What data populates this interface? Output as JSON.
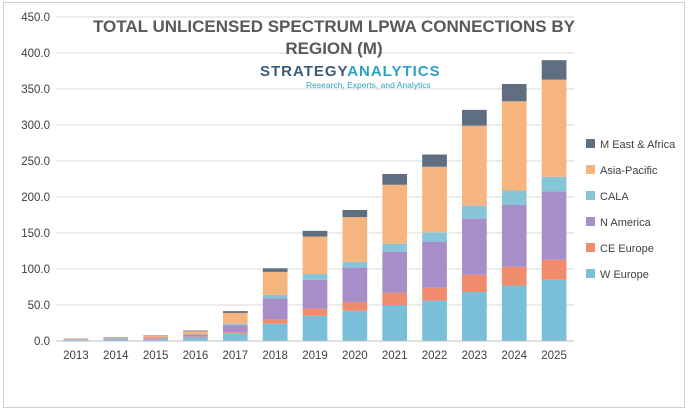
{
  "chart_data": {
    "type": "bar",
    "stacked": true,
    "title": "TOTAL UNLICENSED SPECTRUM LPWA CONNECTIONS BY REGION (M)",
    "title_lines": [
      "TOTAL UNLICENSED SPECTRUM LPWA CONNECTIONS BY",
      "REGION (M)"
    ],
    "watermark": {
      "name_a": "STRATEGY",
      "name_b": "ANALYTICS",
      "tagline": "Research, Experts, and Analytics"
    },
    "categories": [
      "2013",
      "2014",
      "2015",
      "2016",
      "2017",
      "2018",
      "2019",
      "2020",
      "2021",
      "2022",
      "2023",
      "2024",
      "2025"
    ],
    "ylim": [
      0,
      450
    ],
    "yticks": [
      "0.0",
      "50.0",
      "100.0",
      "150.0",
      "200.0",
      "250.0",
      "300.0",
      "350.0",
      "400.0",
      "450.0"
    ],
    "ytick_values": [
      0,
      50,
      100,
      150,
      200,
      250,
      300,
      350,
      400,
      450
    ],
    "grid": true,
    "legend_position": "right",
    "series": [
      {
        "name": "W Europe",
        "color": "#79bfd9",
        "values": [
          1.5,
          2.5,
          3,
          5,
          10,
          24,
          35,
          42,
          50,
          56,
          68,
          77,
          85
        ]
      },
      {
        "name": "CE Europe",
        "color": "#f08c6c",
        "values": [
          0.3,
          0.4,
          0.6,
          1,
          2,
          6,
          10,
          12,
          17,
          18,
          24,
          26,
          28
        ]
      },
      {
        "name": "N America",
        "color": "#a78ec9",
        "values": [
          0.7,
          1,
          1.5,
          3,
          10,
          29,
          40,
          48,
          57,
          64,
          78,
          86,
          95
        ]
      },
      {
        "name": "CALA",
        "color": "#86c4d8",
        "values": [
          0.2,
          0.3,
          0.4,
          0.5,
          2,
          5,
          8,
          8,
          11,
          13,
          18,
          20,
          20
        ]
      },
      {
        "name": "Asia-Pacific",
        "color": "#f6b47e",
        "values": [
          0.8,
          1,
          2,
          4,
          15,
          32,
          52,
          62,
          82,
          91,
          111,
          124,
          135
        ]
      },
      {
        "name": "M East & Africa",
        "color": "#5f6e80",
        "values": [
          0.2,
          0.3,
          0.5,
          1,
          2.5,
          5,
          8,
          10,
          15,
          17,
          22,
          24,
          27
        ]
      }
    ]
  }
}
